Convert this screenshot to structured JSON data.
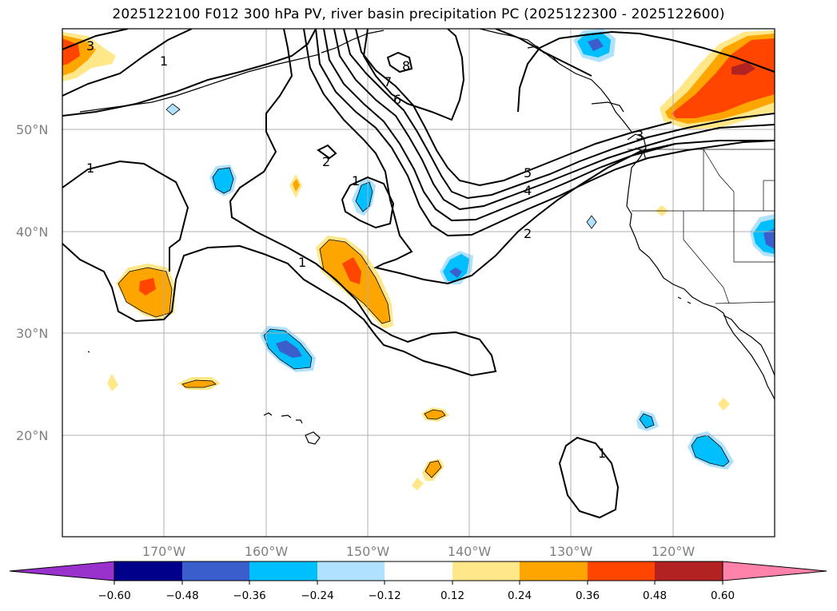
{
  "title": "2025122100 F012 300 hPa PV, river basin precipitation PC (2025122300 - 2025122600)",
  "map": {
    "lat_labels": [
      "50°N",
      "40°N",
      "30°N",
      "20°N"
    ],
    "lon_labels": [
      "170°W",
      "160°W",
      "150°W",
      "140°W",
      "130°W",
      "120°W"
    ],
    "contour_labels": [
      "3",
      "1",
      "8",
      "7",
      "6",
      "2",
      "1",
      "1",
      "5",
      "4",
      "3",
      "2",
      "1",
      "1"
    ]
  },
  "colorbar": {
    "ticks": [
      "−0.60",
      "−0.48",
      "−0.36",
      "−0.24",
      "−0.12",
      "0.12",
      "0.24",
      "0.36",
      "0.48",
      "0.60"
    ],
    "colors": {
      "under": "#9932CC",
      "neg060": "#00008B",
      "neg048": "#3A5FCD",
      "neg036": "#00BFFF",
      "neg024": "#B0E2FF",
      "neutral": "#FFFFFF",
      "pos012": "#FFE78A",
      "pos024": "#FFA500",
      "pos036": "#FF4500",
      "pos048": "#B22222",
      "over": "#FF82AB"
    }
  }
}
